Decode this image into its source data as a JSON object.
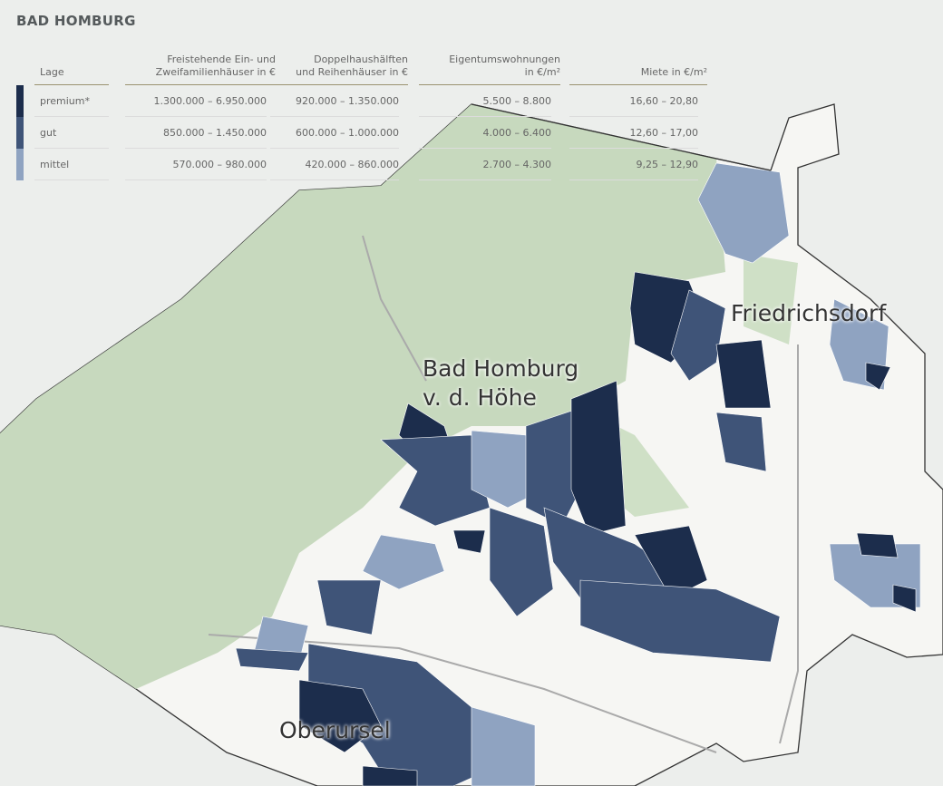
{
  "title": "BAD HOMBURG",
  "table": {
    "headers": [
      "Lage",
      "Freistehende Ein- und\nZweifamilienhäuser in €",
      "Doppelhaushälften\nund Reihenhäuser in €",
      "Eigentumswohnungen\nin €/m²",
      "Miete in €/m²"
    ],
    "rows": [
      {
        "lage": "premium*",
        "color": "#1c2d4c",
        "values": [
          "1.300.000 – 6.950.000",
          "920.000 – 1.350.000",
          "5.500 – 8.800",
          "16,60 – 20,80"
        ]
      },
      {
        "lage": "gut",
        "color": "#3f5478",
        "values": [
          "850.000 – 1.450.000",
          "600.000 – 1.000.000",
          "4.000 – 6.400",
          "12,60 – 17,00"
        ]
      },
      {
        "lage": "mittel",
        "color": "#8fa3c1",
        "values": [
          "570.000 – 980.000",
          "420.000 – 860.000",
          "2.700 – 4.300",
          "9,25 – 12,90"
        ]
      }
    ]
  },
  "map_labels": {
    "bad_homburg_1": "Bad Homburg",
    "bad_homburg_2": "v. d. Höhe",
    "friedrichsdorf": "Friedrichsdorf",
    "oberursel": "Oberursel"
  },
  "colors": {
    "forest": "#c9dac0",
    "urban": "#f7f7f5",
    "boundary": "#333333"
  }
}
